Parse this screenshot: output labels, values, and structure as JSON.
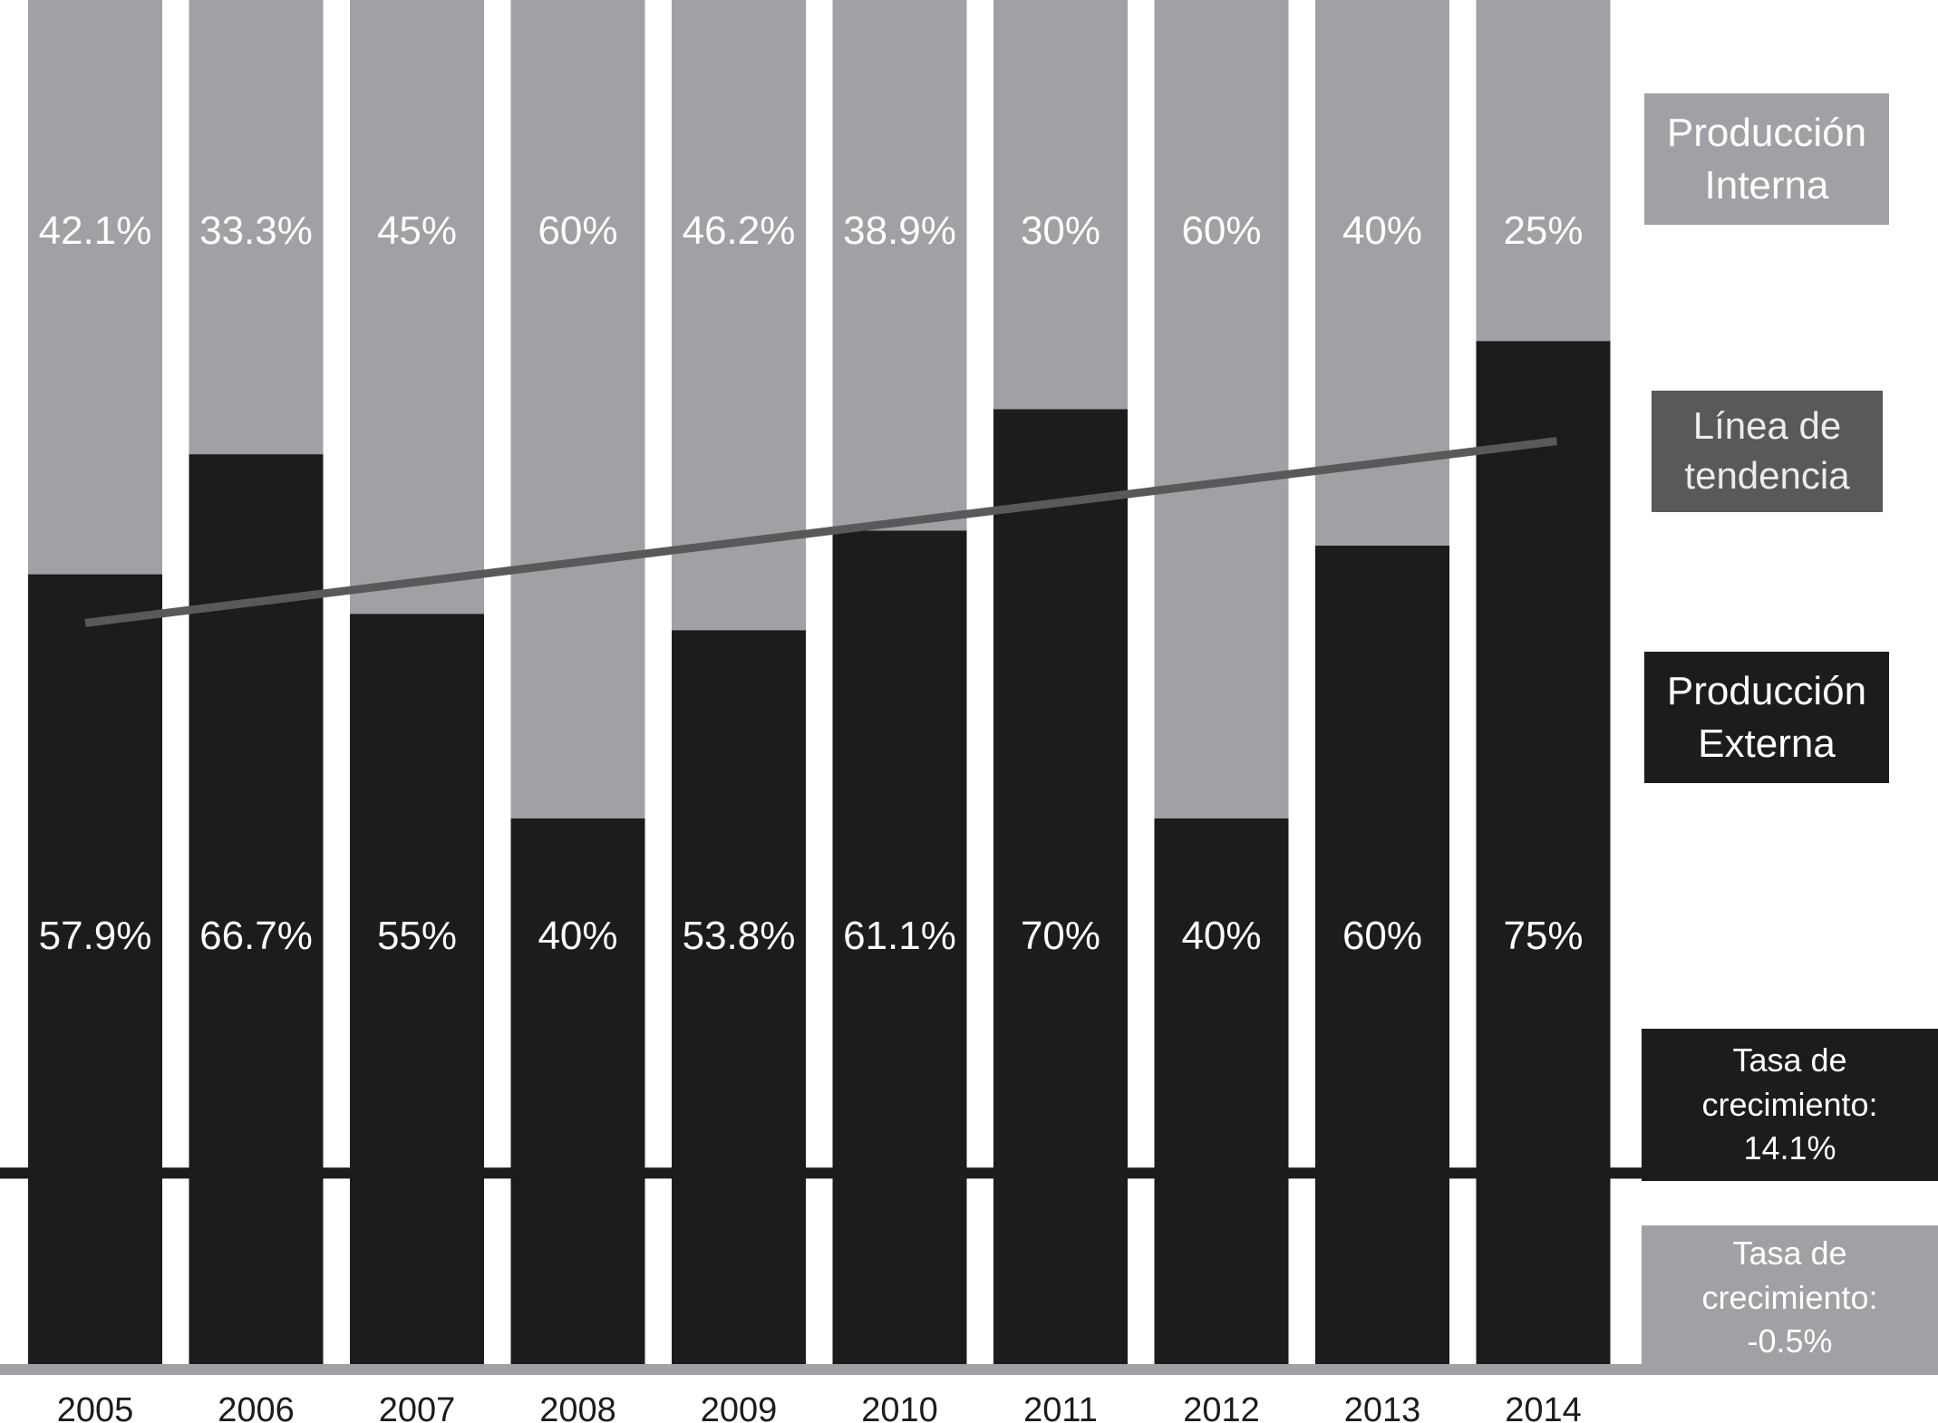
{
  "colors": {
    "internal": "#a0a1a4",
    "external": "#1c1c1c",
    "trend": "#58595b",
    "baseline": "#1c1c1c",
    "axis": "#a0a1a4"
  },
  "chart_data": {
    "type": "bar",
    "stacked": true,
    "normalized_percent": true,
    "categories": [
      "2005",
      "2006",
      "2007",
      "2008",
      "2009",
      "2010",
      "2011",
      "2012",
      "2013",
      "2014"
    ],
    "series": [
      {
        "name": "Producción Externa",
        "values": [
          57.9,
          66.7,
          55,
          40,
          53.8,
          61.1,
          70,
          40,
          60,
          75
        ],
        "labels": [
          "57.9%",
          "66.7%",
          "55%",
          "40%",
          "53.8%",
          "61.1%",
          "70%",
          "40%",
          "60%",
          "75%"
        ]
      },
      {
        "name": "Producción Interna",
        "values": [
          42.1,
          33.3,
          45,
          60,
          46.2,
          38.9,
          30,
          60,
          40,
          25
        ],
        "labels": [
          "42.1%",
          "33.3%",
          "45%",
          "60%",
          "46.2%",
          "38.9%",
          "30%",
          "60%",
          "40%",
          "25%"
        ]
      }
    ],
    "trend_line": {
      "name": "Línea de tendencia",
      "start": {
        "x": "2005",
        "y": 53
      },
      "end": {
        "x": "2014",
        "y": 67
      }
    },
    "reference_line_y": 14,
    "ylim": [
      0,
      100
    ],
    "legend": {
      "placement": "right",
      "internal": [
        "Producción",
        "Interna"
      ],
      "trend": [
        "Línea de",
        "tendencia"
      ],
      "external": [
        "Producción",
        "Externa"
      ]
    },
    "growth_rates": {
      "external": [
        "Tasa de",
        "crecimiento:",
        "14.1%"
      ],
      "internal": [
        "Tasa de",
        "crecimiento:",
        "-0.5%"
      ]
    }
  }
}
